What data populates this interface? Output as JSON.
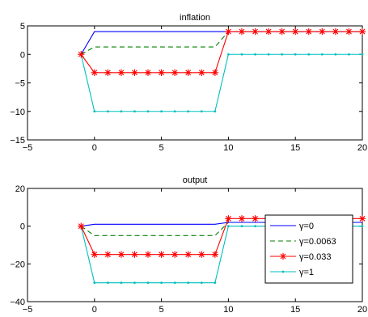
{
  "chart_data": [
    {
      "type": "line",
      "title": "inflation",
      "xlabel": "",
      "ylabel": "",
      "xlim": [
        -5,
        20
      ],
      "ylim": [
        -15,
        5
      ],
      "xticks": [
        -5,
        0,
        5,
        10,
        15,
        20
      ],
      "yticks": [
        -15,
        -10,
        -5,
        0,
        5
      ],
      "x": [
        -1,
        0,
        1,
        2,
        3,
        4,
        5,
        6,
        7,
        8,
        9,
        10,
        11,
        12,
        13,
        14,
        15,
        16,
        17,
        18,
        19,
        20
      ],
      "series": [
        {
          "name": "γ=0",
          "color": "#0000ff",
          "dash": "solid",
          "marker": "none",
          "values": [
            0,
            4,
            4,
            4,
            4,
            4,
            4,
            4,
            4,
            4,
            4,
            4,
            4,
            4,
            4,
            4,
            4,
            4,
            4,
            4,
            4,
            4
          ]
        },
        {
          "name": "γ=0.0063",
          "color": "#008000",
          "dash": "dashed",
          "marker": "none",
          "values": [
            0,
            1.3,
            1.3,
            1.3,
            1.3,
            1.3,
            1.3,
            1.3,
            1.3,
            1.3,
            1.3,
            4,
            4,
            4,
            4,
            4,
            4,
            4,
            4,
            4,
            4,
            4
          ]
        },
        {
          "name": "γ=0.033",
          "color": "#ff0000",
          "dash": "solid",
          "marker": "asterisk",
          "values": [
            0,
            -3.2,
            -3.2,
            -3.2,
            -3.2,
            -3.2,
            -3.2,
            -3.2,
            -3.2,
            -3.2,
            -3.2,
            4,
            4,
            4,
            4,
            4,
            4,
            4,
            4,
            4,
            4,
            4
          ]
        },
        {
          "name": "γ=1",
          "color": "#00bfbf",
          "dash": "solid",
          "marker": "dot",
          "values": [
            0,
            -10,
            -10,
            -10,
            -10,
            -10,
            -10,
            -10,
            -10,
            -10,
            -10,
            0,
            0,
            0,
            0,
            0,
            0,
            0,
            0,
            0,
            0,
            0
          ]
        }
      ],
      "legend": null
    },
    {
      "type": "line",
      "title": "output",
      "xlabel": "",
      "ylabel": "",
      "xlim": [
        -5,
        20
      ],
      "ylim": [
        -40,
        20
      ],
      "xticks": [
        -5,
        0,
        5,
        10,
        15,
        20
      ],
      "yticks": [
        -40,
        -20,
        0,
        20
      ],
      "x": [
        -1,
        0,
        1,
        2,
        3,
        4,
        5,
        6,
        7,
        8,
        9,
        10,
        11,
        12,
        13,
        14,
        15,
        16,
        17,
        18,
        19,
        20
      ],
      "series": [
        {
          "name": "γ=0",
          "color": "#0000ff",
          "dash": "solid",
          "marker": "none",
          "values": [
            0,
            1,
            1,
            1,
            1,
            1,
            1,
            1,
            1,
            1,
            1,
            2,
            2,
            2,
            2,
            2,
            2,
            2,
            2,
            2,
            2,
            2
          ]
        },
        {
          "name": "γ=0.0063",
          "color": "#008000",
          "dash": "dashed",
          "marker": "none",
          "values": [
            0,
            -5,
            -5,
            -5,
            -5,
            -5,
            -5,
            -5,
            -5,
            -5,
            -5,
            2,
            2,
            2,
            2,
            2,
            2,
            2,
            2,
            2,
            2,
            2
          ]
        },
        {
          "name": "γ=0.033",
          "color": "#ff0000",
          "dash": "solid",
          "marker": "asterisk",
          "values": [
            0,
            -15,
            -15,
            -15,
            -15,
            -15,
            -15,
            -15,
            -15,
            -15,
            -15,
            4,
            4,
            4,
            4,
            4,
            4,
            4,
            4,
            4,
            4,
            4
          ]
        },
        {
          "name": "γ=1",
          "color": "#00bfbf",
          "dash": "solid",
          "marker": "dot",
          "values": [
            0,
            -30,
            -30,
            -30,
            -30,
            -30,
            -30,
            -30,
            -30,
            -30,
            -30,
            0,
            0,
            0,
            0,
            0,
            0,
            0,
            0,
            0,
            0,
            0
          ]
        }
      ],
      "legend": "right",
      "legend_entries": [
        "γ=0",
        "γ=0.0063",
        "γ=0.033",
        "γ=1"
      ]
    }
  ]
}
